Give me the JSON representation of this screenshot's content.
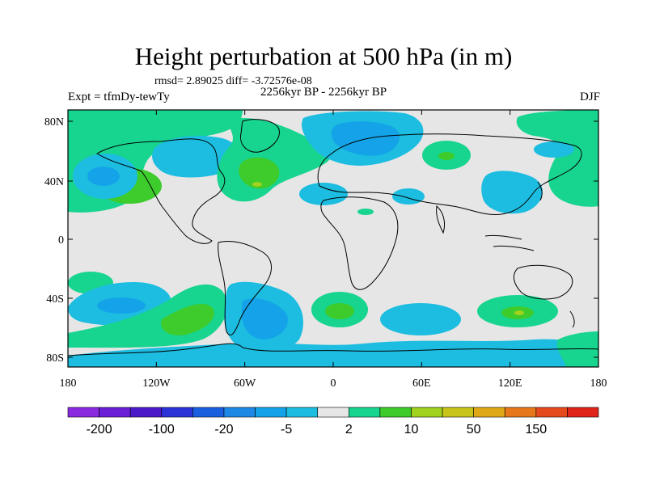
{
  "title": "Height perturbation at 500 hPa (in m)",
  "subtitle_rmsd": "rmsd= 2.89025 diff= -3.72576e-08",
  "subtitle_period": "2256kyr BP - 2256kyr BP",
  "left_label": "Expt = tfmDy-tewTy",
  "right_label": "DJF",
  "lat_ticks": [
    "80N",
    "40N",
    "0",
    "40S",
    "80S"
  ],
  "lon_ticks": [
    "180",
    "120W",
    "60W",
    "0",
    "60E",
    "120E",
    "180"
  ],
  "colorbar": {
    "colors": [
      "#8a2be2",
      "#6a1fd6",
      "#4b19c8",
      "#2a32d8",
      "#1a5fe0",
      "#1e88e6",
      "#14a3e8",
      "#1cbde0",
      "#e6e6e6",
      "#17d48f",
      "#3ecb2c",
      "#a0d21e",
      "#c9c419",
      "#e0a815",
      "#e7781a",
      "#e44a1c",
      "#e0241a"
    ],
    "labels": [
      "-200",
      "-100",
      "-20",
      "-5",
      "2",
      "10",
      "50",
      "150"
    ]
  },
  "colors": {
    "land_background": "#e6e6e6",
    "negative_light": "#1cbde0",
    "negative_mid": "#14a3e8",
    "negative_strong": "#1e88e6",
    "positive_light": "#17d48f",
    "positive_mid": "#3ecb2c",
    "positive_strong": "#a0d21e"
  }
}
